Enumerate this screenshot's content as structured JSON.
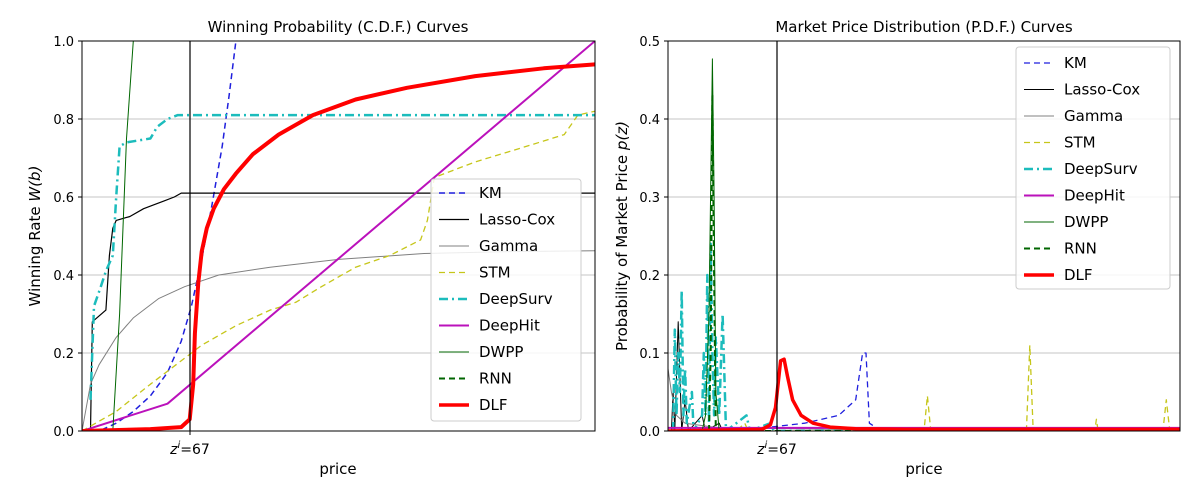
{
  "chart_data": [
    {
      "type": "line",
      "title": "Winning Probability (C.D.F.) Curves",
      "xlabel": "price",
      "ylabel_prefix": "Winning Rate ",
      "ylabel_math": "W(b)",
      "xlim": [
        0,
        300
      ],
      "ylim": [
        0,
        1.0
      ],
      "yticks": [
        "0.0",
        "0.2",
        "0.4",
        "0.6",
        "0.8",
        "1.0"
      ],
      "xtick_sup": "i",
      "xtick_value": "=67",
      "xtick_prefix": "z",
      "marker_x": 67,
      "grid": "horizontal",
      "legend_position": "center-right",
      "series": [
        {
          "name": "KM",
          "color": "#1f1fdd",
          "style": "dashed",
          "width": 1.5,
          "points": [
            [
              0,
              0
            ],
            [
              10,
              0
            ],
            [
              20,
              0.02
            ],
            [
              30,
              0.05
            ],
            [
              40,
              0.09
            ],
            [
              50,
              0.15
            ],
            [
              58,
              0.23
            ],
            [
              64,
              0.32
            ],
            [
              70,
              0.44
            ],
            [
              76,
              0.58
            ],
            [
              82,
              0.73
            ],
            [
              86,
              0.86
            ],
            [
              90,
              1.0
            ]
          ]
        },
        {
          "name": "Lasso-Cox",
          "color": "#000000",
          "style": "solid",
          "width": 1.2,
          "points": [
            [
              5,
              0
            ],
            [
              6,
              0.28
            ],
            [
              14,
              0.31
            ],
            [
              16,
              0.45
            ],
            [
              18,
              0.52
            ],
            [
              20,
              0.54
            ],
            [
              28,
              0.55
            ],
            [
              36,
              0.57
            ],
            [
              42,
              0.58
            ],
            [
              48,
              0.59
            ],
            [
              54,
              0.6
            ],
            [
              58,
              0.61
            ],
            [
              300,
              0.61
            ]
          ]
        },
        {
          "name": "Gamma",
          "color": "#808080",
          "style": "solid",
          "width": 1.0,
          "points": [
            [
              0,
              0
            ],
            [
              5,
              0.12
            ],
            [
              10,
              0.17
            ],
            [
              20,
              0.24
            ],
            [
              30,
              0.29
            ],
            [
              45,
              0.34
            ],
            [
              60,
              0.37
            ],
            [
              80,
              0.4
            ],
            [
              110,
              0.42
            ],
            [
              150,
              0.44
            ],
            [
              200,
              0.455
            ],
            [
              250,
              0.46
            ],
            [
              300,
              0.462
            ]
          ]
        },
        {
          "name": "STM",
          "color": "#c6c61a",
          "style": "dashed",
          "width": 1.3,
          "points": [
            [
              0,
              0
            ],
            [
              20,
              0.05
            ],
            [
              40,
              0.12
            ],
            [
              55,
              0.17
            ],
            [
              70,
              0.22
            ],
            [
              90,
              0.27
            ],
            [
              110,
              0.31
            ],
            [
              125,
              0.33
            ],
            [
              140,
              0.37
            ],
            [
              160,
              0.42
            ],
            [
              180,
              0.45
            ],
            [
              198,
              0.49
            ],
            [
              202,
              0.54
            ],
            [
              206,
              0.65
            ],
            [
              230,
              0.69
            ],
            [
              260,
              0.73
            ],
            [
              282,
              0.76
            ],
            [
              290,
              0.81
            ],
            [
              300,
              0.82
            ]
          ]
        },
        {
          "name": "DeepSurv",
          "color": "#1cbcbc",
          "style": "dashdot",
          "width": 2.5,
          "points": [
            [
              5,
              0.08
            ],
            [
              7,
              0.32
            ],
            [
              11,
              0.37
            ],
            [
              14,
              0.41
            ],
            [
              18,
              0.45
            ],
            [
              20,
              0.6
            ],
            [
              22,
              0.73
            ],
            [
              26,
              0.74
            ],
            [
              40,
              0.75
            ],
            [
              44,
              0.78
            ],
            [
              50,
              0.8
            ],
            [
              56,
              0.81
            ],
            [
              300,
              0.81
            ]
          ]
        },
        {
          "name": "DeepHit",
          "color": "#bb11bb",
          "style": "solid",
          "width": 2.0,
          "points": [
            [
              0,
              0
            ],
            [
              50,
              0.07
            ],
            [
              300,
              1.0
            ]
          ]
        },
        {
          "name": "DWPP",
          "color": "#006600",
          "style": "solid",
          "width": 1.0,
          "points": [
            [
              18,
              0
            ],
            [
              22,
              0.3
            ],
            [
              26,
              0.75
            ],
            [
              30,
              1.0
            ]
          ]
        },
        {
          "name": "RNN",
          "color": "#006600",
          "style": "dashed",
          "width": 2.0,
          "points": []
        },
        {
          "name": "DLF",
          "color": "#ff0000",
          "style": "solid",
          "width": 4.0,
          "points": [
            [
              0,
              0
            ],
            [
              40,
              0.005
            ],
            [
              58,
              0.01
            ],
            [
              63,
              0.03
            ],
            [
              65,
              0.12
            ],
            [
              66,
              0.25
            ],
            [
              68,
              0.38
            ],
            [
              70,
              0.46
            ],
            [
              73,
              0.52
            ],
            [
              77,
              0.57
            ],
            [
              83,
              0.62
            ],
            [
              90,
              0.66
            ],
            [
              100,
              0.71
            ],
            [
              115,
              0.76
            ],
            [
              135,
              0.81
            ],
            [
              160,
              0.85
            ],
            [
              190,
              0.88
            ],
            [
              230,
              0.91
            ],
            [
              270,
              0.93
            ],
            [
              300,
              0.94
            ]
          ]
        }
      ]
    },
    {
      "type": "line",
      "title": "Market Price Distribution (P.D.F.) Curves",
      "xlabel": "price",
      "ylabel_prefix": "Probability of Market Price ",
      "ylabel_math": "p(z)",
      "xlim": [
        0,
        300
      ],
      "ylim": [
        0,
        0.5
      ],
      "yticks": [
        "0.0",
        "0.1",
        "0.2",
        "0.3",
        "0.4",
        "0.5"
      ],
      "xtick_sup": "i",
      "xtick_value": "=67",
      "xtick_prefix": "z",
      "marker_x": 67,
      "grid": "horizontal",
      "legend_position": "upper-right",
      "series": [
        {
          "name": "KM",
          "color": "#1f1fdd",
          "style": "dashed",
          "width": 1.3,
          "points": [
            [
              20,
              0
            ],
            [
              60,
              0.005
            ],
            [
              80,
              0.01
            ],
            [
              100,
              0.02
            ],
            [
              110,
              0.04
            ],
            [
              114,
              0.1
            ],
            [
              116,
              0.1
            ],
            [
              118,
              0.01
            ],
            [
              125,
              0
            ],
            [
              300,
              0
            ]
          ]
        },
        {
          "name": "Lasso-Cox",
          "color": "#000000",
          "style": "solid",
          "width": 1.0,
          "points": [
            [
              2,
              0
            ],
            [
              3,
              0.05
            ],
            [
              4,
              0
            ],
            [
              6,
              0.14
            ],
            [
              8,
              0
            ],
            [
              10,
              0.04
            ],
            [
              12,
              0
            ],
            [
              20,
              0.02
            ],
            [
              22,
              0
            ],
            [
              30,
              0.01
            ],
            [
              32,
              0
            ],
            [
              300,
              0
            ]
          ]
        },
        {
          "name": "Gamma",
          "color": "#808080",
          "style": "solid",
          "width": 1.0,
          "points": [
            [
              0,
              0.08
            ],
            [
              2,
              0.05
            ],
            [
              5,
              0.02
            ],
            [
              10,
              0.01
            ],
            [
              30,
              0.004
            ],
            [
              100,
              0.002
            ],
            [
              300,
              0.001
            ]
          ]
        },
        {
          "name": "STM",
          "color": "#c6c61a",
          "style": "dashed",
          "width": 1.3,
          "points": [
            [
              0,
              0
            ],
            [
              40,
              0
            ],
            [
              45,
              0.01
            ],
            [
              47,
              0
            ],
            [
              150,
              0
            ],
            [
              152,
              0.045
            ],
            [
              154,
              0
            ],
            [
              210,
              0
            ],
            [
              212,
              0.11
            ],
            [
              214,
              0
            ],
            [
              250,
              0
            ],
            [
              251,
              0.015
            ],
            [
              252,
              0
            ],
            [
              290,
              0
            ],
            [
              292,
              0.04
            ],
            [
              294,
              0
            ],
            [
              300,
              0
            ]
          ]
        },
        {
          "name": "DeepSurv",
          "color": "#1cbcbc",
          "style": "dashdot",
          "width": 2.5,
          "points": [
            [
              3,
              0
            ],
            [
              4,
              0.13
            ],
            [
              5,
              0.02
            ],
            [
              6,
              0.1
            ],
            [
              7,
              0.05
            ],
            [
              8,
              0.18
            ],
            [
              9,
              0.02
            ],
            [
              10,
              0.08
            ],
            [
              11,
              0.01
            ],
            [
              14,
              0.05
            ],
            [
              15,
              0
            ],
            [
              20,
              0.02
            ],
            [
              21,
              0.1
            ],
            [
              22,
              0.02
            ],
            [
              23,
              0.2
            ],
            [
              24,
              0.01
            ],
            [
              25,
              0.24
            ],
            [
              26,
              0.1
            ],
            [
              27,
              0.02
            ],
            [
              28,
              0.12
            ],
            [
              30,
              0.02
            ],
            [
              32,
              0.15
            ],
            [
              34,
              0
            ],
            [
              40,
              0.01
            ],
            [
              46,
              0.02
            ],
            [
              48,
              0
            ],
            [
              60,
              0.01
            ],
            [
              62,
              0
            ],
            [
              300,
              0
            ]
          ]
        },
        {
          "name": "DeepHit",
          "color": "#bb11bb",
          "style": "solid",
          "width": 2.0,
          "points": [
            [
              0,
              0.004
            ],
            [
              300,
              0.004
            ]
          ]
        },
        {
          "name": "DWPP",
          "color": "#006600",
          "style": "solid",
          "width": 1.0,
          "points": [
            [
              20,
              0
            ],
            [
              22,
              0.02
            ],
            [
              24,
              0.15
            ],
            [
              26,
              0.477
            ],
            [
              27,
              0.3
            ],
            [
              28,
              0.05
            ],
            [
              30,
              0
            ],
            [
              300,
              0
            ]
          ]
        },
        {
          "name": "RNN",
          "color": "#006600",
          "style": "dashed",
          "width": 2.0,
          "points": [
            [
              24,
              0
            ],
            [
              25,
              0.1
            ],
            [
              26,
              0.43
            ],
            [
              27,
              0.2
            ],
            [
              28,
              0
            ],
            [
              300,
              0
            ]
          ]
        },
        {
          "name": "DLF",
          "color": "#ff0000",
          "style": "solid",
          "width": 3.5,
          "points": [
            [
              0,
              0
            ],
            [
              55,
              0.002
            ],
            [
              60,
              0.008
            ],
            [
              63,
              0.03
            ],
            [
              65,
              0.07
            ],
            [
              66,
              0.09
            ],
            [
              68,
              0.092
            ],
            [
              70,
              0.07
            ],
            [
              73,
              0.04
            ],
            [
              78,
              0.02
            ],
            [
              85,
              0.01
            ],
            [
              95,
              0.005
            ],
            [
              110,
              0.003
            ],
            [
              140,
              0.002
            ],
            [
              200,
              0.002
            ],
            [
              300,
              0.002
            ]
          ]
        }
      ]
    }
  ]
}
